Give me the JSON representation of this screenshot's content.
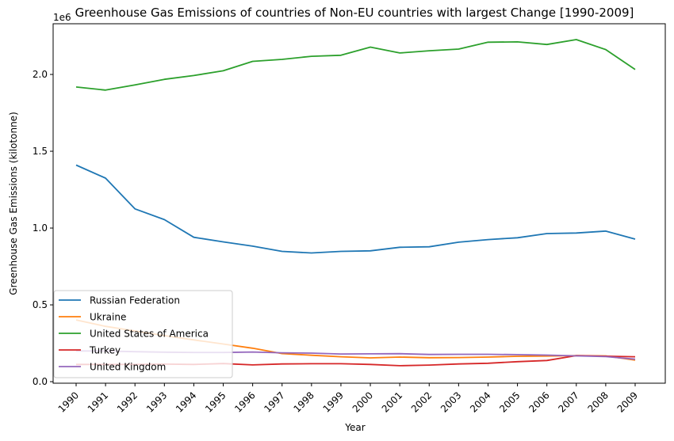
{
  "chart_data": {
    "type": "line",
    "title": "Greenhouse Gas Emissions of countries of Non-EU countries with largest Change [1990-2009]",
    "xlabel": "Year",
    "ylabel": "Greenhouse Gas Emissions (kilotonne)",
    "offset_text": "1e6",
    "x": [
      "1990",
      "1991",
      "1992",
      "1993",
      "1994",
      "1995",
      "1996",
      "1997",
      "1998",
      "1999",
      "2000",
      "2001",
      "2002",
      "2003",
      "2004",
      "2005",
      "2006",
      "2007",
      "2008",
      "2009"
    ],
    "yticks": [
      0.0,
      0.5,
      1.0,
      1.5,
      2.0
    ],
    "ytick_labels": [
      "0.0",
      "0.5",
      "1.0",
      "1.5",
      "2.0"
    ],
    "ylim": [
      -10000,
      2330000
    ],
    "grid": false,
    "legend_position": "lower-left",
    "series": [
      {
        "name": "Russian Federation",
        "color": "#1f77b4",
        "values": [
          1410000,
          1325000,
          1125000,
          1055000,
          940000,
          910000,
          882000,
          848000,
          838000,
          848000,
          852000,
          875000,
          878000,
          908000,
          925000,
          937000,
          964000,
          968000,
          980000,
          928000
        ]
      },
      {
        "name": "Ukraine",
        "color": "#ff7f0e",
        "values": [
          402000,
          360000,
          330000,
          300000,
          272000,
          245000,
          218000,
          183000,
          172000,
          162000,
          155000,
          160000,
          156000,
          157000,
          160000,
          165000,
          167000,
          170000,
          168000,
          140000
        ]
      },
      {
        "name": "United States of America",
        "color": "#2ca02c",
        "values": [
          1918000,
          1898000,
          1932000,
          1968000,
          1993000,
          2024000,
          2085000,
          2098000,
          2118000,
          2125000,
          2178000,
          2140000,
          2154000,
          2165000,
          2210000,
          2212000,
          2195000,
          2227000,
          2162000,
          2032000
        ]
      },
      {
        "name": "Turkey",
        "color": "#d62728",
        "values": [
          112000,
          112000,
          112000,
          114000,
          112000,
          118000,
          109000,
          115000,
          117000,
          117000,
          112000,
          104000,
          108000,
          115000,
          120000,
          130000,
          138000,
          170000,
          166000,
          162000
        ]
      },
      {
        "name": "United Kingdom",
        "color": "#9467bd",
        "values": [
          200000,
          200000,
          195000,
          192000,
          190000,
          190000,
          193000,
          188000,
          186000,
          180000,
          181000,
          182000,
          177000,
          178000,
          178000,
          176000,
          173000,
          168000,
          163000,
          146000
        ]
      }
    ]
  }
}
